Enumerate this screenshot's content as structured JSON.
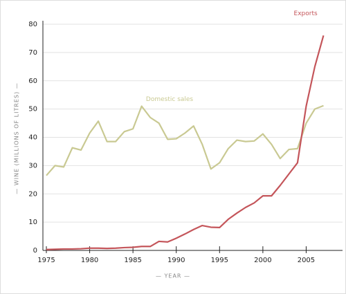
{
  "chart_data": {
    "type": "line",
    "x_label": "— YEAR —",
    "y_label": "— WINE (MILLIONS OF LITRES) —",
    "x": [
      1975,
      1976,
      1977,
      1978,
      1979,
      1980,
      1981,
      1982,
      1983,
      1984,
      1985,
      1986,
      1987,
      1988,
      1989,
      1990,
      1991,
      1992,
      1993,
      1994,
      1995,
      1996,
      1997,
      1998,
      1999,
      2000,
      2001,
      2002,
      2003,
      2004,
      2005,
      2006,
      2007
    ],
    "series": [
      {
        "name": "Domestic sales",
        "color": "#c9c992",
        "values": [
          26.5,
          30,
          29.5,
          36.3,
          35.5,
          41.5,
          45.7,
          38.5,
          38.5,
          42,
          43,
          51,
          47,
          45,
          39.3,
          39.5,
          41.5,
          44,
          37.5,
          28.8,
          31,
          36,
          39,
          38.5,
          38.7,
          41.2,
          37.5,
          32.5,
          35.7,
          36,
          45,
          50,
          51.2
        ]
      },
      {
        "name": "Exports",
        "color": "#c4555a",
        "values": [
          0.3,
          0.4,
          0.5,
          0.5,
          0.6,
          0.8,
          0.8,
          0.7,
          0.8,
          1.0,
          1.1,
          1.4,
          1.4,
          3.2,
          3.0,
          4.3,
          5.8,
          7.4,
          8.8,
          8.2,
          8.1,
          11,
          13.2,
          15.2,
          16.8,
          19.3,
          19.3,
          23,
          27,
          31,
          51,
          65,
          76
        ]
      }
    ],
    "xlim": [
      1974.6,
      2009.2
    ],
    "ylim": [
      0,
      80
    ],
    "xticks": [
      1975,
      1980,
      1985,
      1990,
      1995,
      2000,
      2005
    ],
    "yticks": [
      0,
      10,
      20,
      30,
      40,
      50,
      60,
      70,
      80
    ],
    "grid": true
  }
}
